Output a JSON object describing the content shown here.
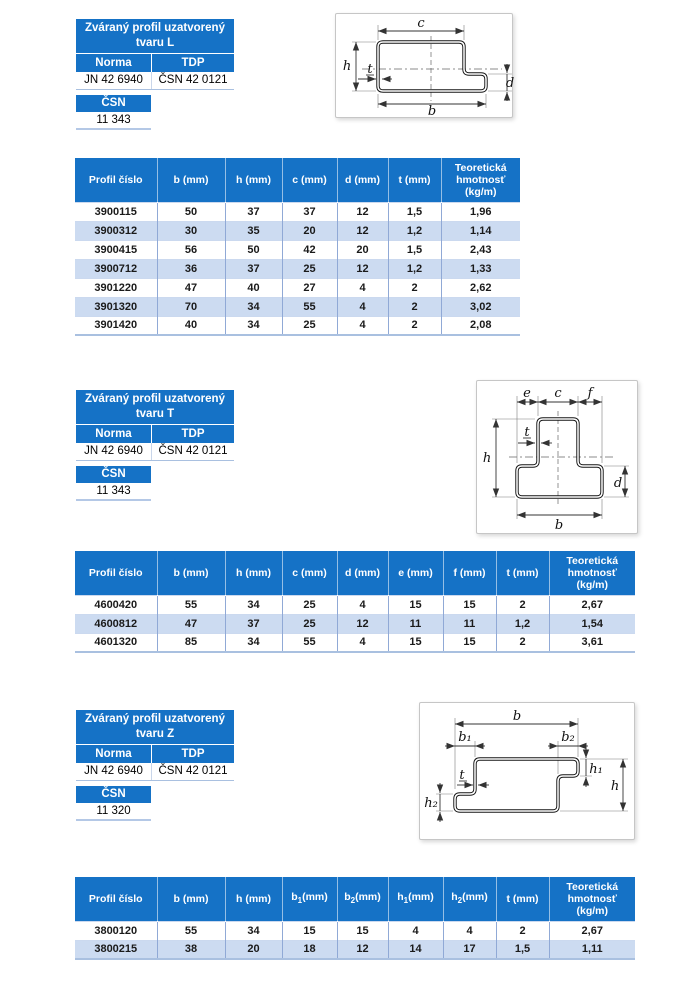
{
  "colors": {
    "header_blue": "#1572C6",
    "alt_row": "#CCDBF1",
    "cell_border": "#90A9D6"
  },
  "sections": [
    {
      "shape": "L",
      "header": {
        "title_line1": "Zváraný profil uzatvorený",
        "title_line2": "tvaru L",
        "norma_label": "Norma",
        "tdp_label": "TDP",
        "norma_value": "JN 42 6940",
        "tdp_value": "ČSN 42 0121",
        "csn_label": "ČSN",
        "csn_value": "11 343"
      },
      "diagram": {
        "c": "c",
        "h": "h",
        "t": "t",
        "b": "b",
        "d": "d"
      },
      "table": {
        "headers": [
          "Profil číslo",
          "b (mm)",
          "h (mm)",
          "c (mm)",
          "d (mm)",
          "t (mm)",
          "Teoretická hmotnosť (kg/m)"
        ],
        "rows": [
          [
            "3900115",
            "50",
            "37",
            "37",
            "12",
            "1,5",
            "1,96"
          ],
          [
            "3900312",
            "30",
            "35",
            "20",
            "12",
            "1,2",
            "1,14"
          ],
          [
            "3900415",
            "56",
            "50",
            "42",
            "20",
            "1,5",
            "2,43"
          ],
          [
            "3900712",
            "36",
            "37",
            "25",
            "12",
            "1,2",
            "1,33"
          ],
          [
            "3901220",
            "47",
            "40",
            "27",
            "4",
            "2",
            "2,62"
          ],
          [
            "3901320",
            "70",
            "34",
            "55",
            "4",
            "2",
            "3,02"
          ],
          [
            "3901420",
            "40",
            "34",
            "25",
            "4",
            "2",
            "2,08"
          ]
        ]
      }
    },
    {
      "shape": "T",
      "header": {
        "title_line1": "Zváraný profil uzatvorený",
        "title_line2": "tvaru T",
        "norma_label": "Norma",
        "tdp_label": "TDP",
        "norma_value": "JN 42 6940",
        "tdp_value": "ČSN 42 0121",
        "csn_label": "ČSN",
        "csn_value": "11 343"
      },
      "diagram": {
        "e": "e",
        "c": "c",
        "f": "f",
        "h": "h",
        "t": "t",
        "d": "d",
        "b": "b"
      },
      "table": {
        "headers": [
          "Profil číslo",
          "b (mm)",
          "h (mm)",
          "c (mm)",
          "d (mm)",
          "e (mm)",
          "f (mm)",
          "t (mm)",
          "Teoretická hmotnosť (kg/m)"
        ],
        "rows": [
          [
            "4600420",
            "55",
            "34",
            "25",
            "4",
            "15",
            "15",
            "2",
            "2,67"
          ],
          [
            "4600812",
            "47",
            "37",
            "25",
            "12",
            "11",
            "11",
            "1,2",
            "1,54"
          ],
          [
            "4601320",
            "85",
            "34",
            "55",
            "4",
            "15",
            "15",
            "2",
            "3,61"
          ]
        ]
      }
    },
    {
      "shape": "Z",
      "header": {
        "title_line1": "Zváraný profil uzatvorený",
        "title_line2": "tvaru Z",
        "norma_label": "Norma",
        "tdp_label": "TDP",
        "norma_value": "JN 42 6940",
        "tdp_value": "ČSN 42 0121",
        "csn_label": "ČSN",
        "csn_value": "11 320"
      },
      "diagram": {
        "b": "b",
        "b1": "b₁",
        "b2": "b₂",
        "h1": "h₁",
        "h": "h",
        "h2": "h₂",
        "t": "t"
      },
      "table": {
        "headers": [
          "Profil číslo",
          "b (mm)",
          "h (mm)",
          "b₁(mm)",
          "b₂(mm)",
          "h₁(mm)",
          "h₂(mm)",
          "t (mm)",
          "Teoretická hmotnosť (kg/m)"
        ],
        "rows": [
          [
            "3800120",
            "55",
            "34",
            "15",
            "15",
            "4",
            "4",
            "2",
            "2,67"
          ],
          [
            "3800215",
            "38",
            "20",
            "18",
            "12",
            "14",
            "17",
            "1,5",
            "1,11"
          ]
        ]
      }
    }
  ]
}
